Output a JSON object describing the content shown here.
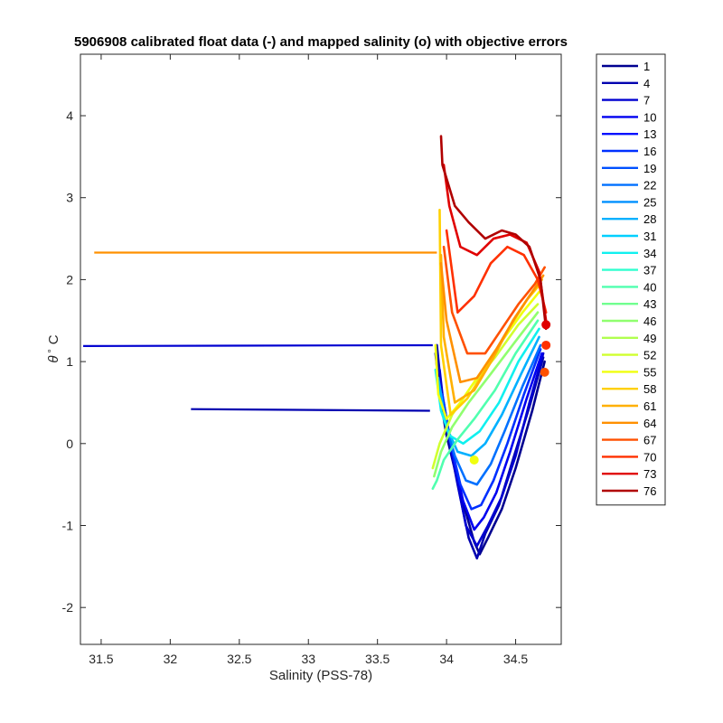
{
  "chart_data": {
    "type": "line",
    "title": "5906908 calibrated float data (-) and mapped salinity (o) with objective errors",
    "xlabel": "Salinity (PSS-78)",
    "ylabel_symbol": "θ",
    "ylabel_unit": "C",
    "xlim": [
      31.35,
      34.83
    ],
    "ylim": [
      -2.45,
      4.75
    ],
    "xticks": [
      31.5,
      32,
      32.5,
      33,
      33.5,
      34,
      34.5
    ],
    "xtick_labels": [
      "31.5",
      "32",
      "32.5",
      "33",
      "33.5",
      "34",
      "34.5"
    ],
    "yticks": [
      -2,
      -1,
      0,
      1,
      2,
      3,
      4
    ],
    "ytick_labels": [
      "-2",
      "-1",
      "0",
      "1",
      "2",
      "3",
      "4"
    ],
    "grid": false,
    "legend_position": "outside-top-right",
    "colormap": "jet",
    "legend": [
      "1",
      "4",
      "7",
      "10",
      "13",
      "16",
      "19",
      "22",
      "25",
      "28",
      "31",
      "34",
      "37",
      "40",
      "43",
      "46",
      "49",
      "52",
      "55",
      "58",
      "61",
      "64",
      "67",
      "70",
      "73",
      "76"
    ],
    "legend_colors": [
      "#000090",
      "#0000b0",
      "#0000d0",
      "#0000f0",
      "#0010ff",
      "#0030ff",
      "#0050ff",
      "#0070ff",
      "#0090ff",
      "#00b0ff",
      "#00d0ff",
      "#10f0ef",
      "#30ffcf",
      "#50ffaf",
      "#70ff8f",
      "#90ff6f",
      "#b0ff4f",
      "#d0ff2f",
      "#f0ff0f",
      "#ffd000",
      "#ffb000",
      "#ff9000",
      "#ff5000",
      "#ff3000",
      "#e00000",
      "#b00000"
    ],
    "long_segments": [
      {
        "x": [
          31.45,
          33.93
        ],
        "y": [
          2.33,
          2.33
        ],
        "color": "#ff9000"
      },
      {
        "x": [
          31.37,
          33.9
        ],
        "y": [
          1.19,
          1.2
        ],
        "color": "#0000d0"
      },
      {
        "x": [
          32.15,
          33.88
        ],
        "y": [
          0.42,
          0.4
        ],
        "color": "#0000b0"
      }
    ],
    "profiles": [
      {
        "color": "#000090",
        "x": [
          34.71,
          34.62,
          34.5,
          34.4,
          34.3,
          34.24,
          34.2,
          34.1,
          34.0,
          33.95,
          33.92
        ],
        "y": [
          1.0,
          0.4,
          -0.3,
          -0.8,
          -1.15,
          -1.35,
          -1.2,
          -0.6,
          0.1,
          0.6,
          1.1
        ]
      },
      {
        "color": "#0000b0",
        "x": [
          34.7,
          34.6,
          34.48,
          34.38,
          34.28,
          34.22,
          34.16,
          34.08,
          34.0,
          33.96,
          33.93
        ],
        "y": [
          1.05,
          0.45,
          -0.2,
          -0.75,
          -1.1,
          -1.4,
          -1.15,
          -0.5,
          0.2,
          0.7,
          1.2
        ]
      },
      {
        "color": "#0000d0",
        "x": [
          34.7,
          34.6,
          34.5,
          34.4,
          34.3,
          34.22,
          34.14,
          34.06,
          33.99,
          33.95
        ],
        "y": [
          1.1,
          0.5,
          -0.15,
          -0.65,
          -1.0,
          -1.25,
          -1.0,
          -0.3,
          0.3,
          0.9
        ]
      },
      {
        "color": "#0000f0",
        "x": [
          34.69,
          34.58,
          34.46,
          34.36,
          34.27,
          34.2,
          34.12,
          34.04,
          33.98
        ],
        "y": [
          1.1,
          0.55,
          -0.1,
          -0.6,
          -0.9,
          -1.05,
          -0.7,
          -0.1,
          0.5
        ]
      },
      {
        "color": "#0030ff",
        "x": [
          34.68,
          34.56,
          34.44,
          34.34,
          34.25,
          34.18,
          34.1,
          34.03,
          33.97
        ],
        "y": [
          1.15,
          0.6,
          0.0,
          -0.45,
          -0.75,
          -0.8,
          -0.5,
          0.0,
          0.6
        ]
      },
      {
        "color": "#0070ff",
        "x": [
          34.68,
          34.55,
          34.42,
          34.32,
          34.22,
          34.14,
          34.06,
          34.0,
          33.95
        ],
        "y": [
          1.2,
          0.7,
          0.15,
          -0.25,
          -0.5,
          -0.45,
          -0.15,
          0.2,
          0.7
        ]
      },
      {
        "color": "#00b0ff",
        "x": [
          34.67,
          34.54,
          34.4,
          34.28,
          34.18,
          34.08,
          34.0,
          33.94
        ],
        "y": [
          1.3,
          0.85,
          0.35,
          0.0,
          -0.15,
          -0.1,
          0.2,
          0.8
        ]
      },
      {
        "color": "#10f0ef",
        "x": [
          34.67,
          34.52,
          34.38,
          34.24,
          34.12,
          34.02,
          33.96,
          33.92
        ],
        "y": [
          1.4,
          1.0,
          0.5,
          0.15,
          0.0,
          0.1,
          0.4,
          0.9
        ]
      },
      {
        "color": "#50ffaf",
        "x": [
          34.66,
          34.5,
          34.35,
          34.2,
          34.08,
          33.98,
          33.93,
          33.9
        ],
        "y": [
          1.5,
          1.1,
          0.65,
          0.3,
          0.05,
          -0.2,
          -0.45,
          -0.55
        ]
      },
      {
        "color": "#90ff6f",
        "x": [
          34.66,
          34.5,
          34.32,
          34.16,
          34.04,
          33.96,
          33.91
        ],
        "y": [
          1.6,
          1.25,
          0.85,
          0.5,
          0.2,
          -0.1,
          -0.4
        ]
      },
      {
        "color": "#d0ff2f",
        "x": [
          34.66,
          34.52,
          34.35,
          34.18,
          34.04,
          33.95,
          33.9
        ],
        "y": [
          1.7,
          1.45,
          1.05,
          0.7,
          0.35,
          0.0,
          -0.3
        ]
      },
      {
        "color": "#f0ff0f",
        "x": [
          34.67,
          34.55,
          34.4,
          34.24,
          34.1,
          34.0,
          33.94,
          33.92
        ],
        "y": [
          1.85,
          1.6,
          1.25,
          0.85,
          0.5,
          0.3,
          0.6,
          1.2
        ]
      },
      {
        "color": "#ffd000",
        "x": [
          34.68,
          34.58,
          34.45,
          34.3,
          34.15,
          34.03,
          33.96,
          33.95
        ],
        "y": [
          1.95,
          1.75,
          1.4,
          0.95,
          0.55,
          0.35,
          1.2,
          2.85
        ]
      },
      {
        "color": "#ffb000",
        "x": [
          34.69,
          34.6,
          34.48,
          34.34,
          34.2,
          34.06,
          33.98,
          33.96
        ],
        "y": [
          2.0,
          1.8,
          1.5,
          1.05,
          0.65,
          0.5,
          1.3,
          2.3
        ]
      },
      {
        "color": "#ff9000",
        "x": [
          34.7,
          34.62,
          34.5,
          34.36,
          34.22,
          34.1,
          34.0,
          33.96
        ],
        "y": [
          2.05,
          1.85,
          1.55,
          1.15,
          0.8,
          0.75,
          1.5,
          2.2
        ]
      },
      {
        "color": "#ff5000",
        "x": [
          34.71,
          34.64,
          34.52,
          34.4,
          34.28,
          34.15,
          34.04,
          33.98
        ],
        "y": [
          2.15,
          1.95,
          1.7,
          1.4,
          1.1,
          1.1,
          1.6,
          2.4
        ]
      },
      {
        "color": "#ff3000",
        "x": [
          34.72,
          34.66,
          34.56,
          34.44,
          34.32,
          34.2,
          34.08,
          34.0
        ],
        "y": [
          1.6,
          2.0,
          2.3,
          2.4,
          2.2,
          1.8,
          1.6,
          2.6
        ]
      },
      {
        "color": "#e00000",
        "x": [
          34.72,
          34.67,
          34.58,
          34.46,
          34.34,
          34.22,
          34.1,
          34.02,
          33.98
        ],
        "y": [
          1.5,
          2.1,
          2.45,
          2.55,
          2.5,
          2.3,
          2.4,
          2.9,
          3.4
        ]
      },
      {
        "color": "#b00000",
        "x": [
          34.72,
          34.68,
          34.6,
          34.5,
          34.4,
          34.28,
          34.16,
          34.06,
          33.97,
          33.96
        ],
        "y": [
          1.4,
          2.0,
          2.4,
          2.55,
          2.6,
          2.5,
          2.7,
          2.9,
          3.4,
          3.75
        ]
      }
    ],
    "mapped_points": [
      {
        "x": 34.71,
        "y": 0.87,
        "color": "#ff5000"
      },
      {
        "x": 34.72,
        "y": 1.2,
        "color": "#ff3000"
      },
      {
        "x": 34.72,
        "y": 1.45,
        "color": "#e00000"
      },
      {
        "x": 34.2,
        "y": -0.2,
        "color": "#f0ff0f"
      }
    ]
  }
}
